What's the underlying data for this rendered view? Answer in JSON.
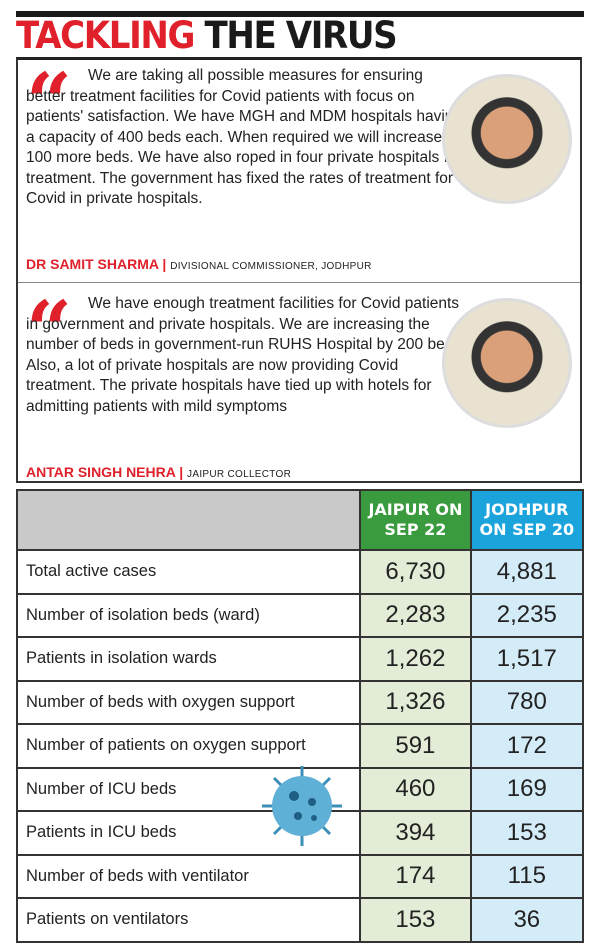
{
  "title": {
    "part1": "TACKLING",
    "part2": "THE VIRUS"
  },
  "quotes": [
    {
      "text": "We are taking all possible measures for ensuring better treatment facilities for Covid patients with focus on patients' satisfaction. We have MGH and MDM hospitals having a capacity of 400 beds each. When required we will increase 100 more beds. We have also roped in four private hospitals for treatment. The government has fixed the rates of treatment for Covid in private hospitals.",
      "name": "DR SAMIT SHARMA",
      "role": "DIVISIONAL COMMISSIONER, JODHPUR"
    },
    {
      "text": "We have enough treatment facilities for Covid patients in government and private hospitals. We are increasing the number of beds in government-run RUHS Hospital by 200 beds. Also, a lot of private hospitals are now providing Covid treatment. The private hospitals have tied up with hotels for admitting patients with mild symptoms",
      "name": "ANTAR SINGH NEHRA",
      "role": "JAIPUR COLLECTOR"
    }
  ],
  "table": {
    "headers": [
      "JAIPUR ON SEP 22",
      "JODHPUR ON SEP 20"
    ],
    "rows": [
      {
        "label": "Total active cases",
        "jaipur": "6,730",
        "jodhpur": "4,881"
      },
      {
        "label": "Number of isolation beds (ward)",
        "jaipur": "2,283",
        "jodhpur": "2,235"
      },
      {
        "label": "Patients in isolation wards",
        "jaipur": "1,262",
        "jodhpur": "1,517"
      },
      {
        "label": "Number of beds with oxygen support",
        "jaipur": "1,326",
        "jodhpur": "780"
      },
      {
        "label": "Number of patients on oxygen support",
        "jaipur": "591",
        "jodhpur": "172"
      },
      {
        "label": "Number of ICU beds",
        "jaipur": "460",
        "jodhpur": "169"
      },
      {
        "label": "Patients in ICU beds",
        "jaipur": "394",
        "jodhpur": "153"
      },
      {
        "label": "Number of beds with ventilator",
        "jaipur": "174",
        "jodhpur": "115"
      },
      {
        "label": "Patients on ventilators",
        "jaipur": "153",
        "jodhpur": "36"
      }
    ]
  },
  "colors": {
    "accent": "#e0202a",
    "jaipur": "#3a9a3e",
    "jodhpur": "#1ba3dc"
  }
}
